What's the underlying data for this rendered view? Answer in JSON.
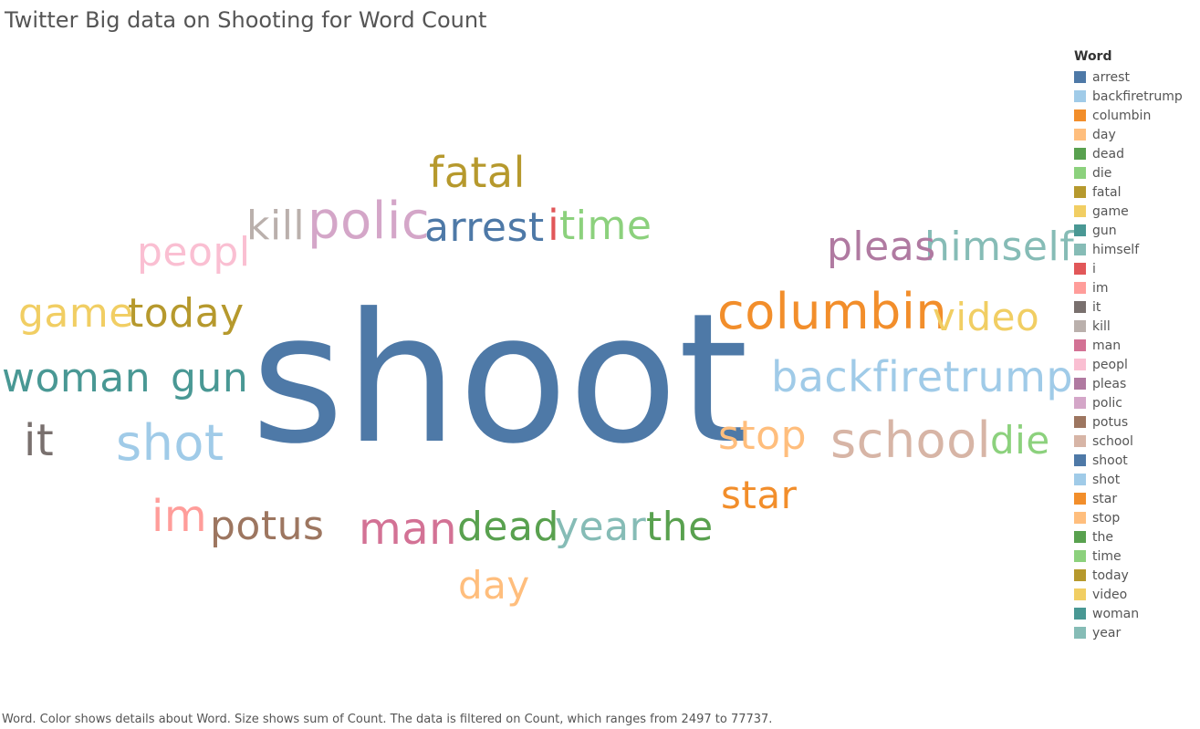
{
  "title": "Twitter Big data on Shooting for Word Count",
  "caption": "Word.  Color shows details about Word.  Size shows sum of Count. The data is filtered on Count, which ranges from 2497 to 77737.",
  "legend": {
    "title": "Word",
    "items": [
      {
        "label": "arrest",
        "color": "#4e79a7"
      },
      {
        "label": "backfiretrump",
        "color": "#a0cbe8"
      },
      {
        "label": "columbin",
        "color": "#f28e2b"
      },
      {
        "label": "day",
        "color": "#ffbe7d"
      },
      {
        "label": "dead",
        "color": "#59a14f"
      },
      {
        "label": "die",
        "color": "#8cd17d"
      },
      {
        "label": "fatal",
        "color": "#b6992d"
      },
      {
        "label": "game",
        "color": "#f1ce63"
      },
      {
        "label": "gun",
        "color": "#499894"
      },
      {
        "label": "himself",
        "color": "#86bcb6"
      },
      {
        "label": "i",
        "color": "#e15759"
      },
      {
        "label": "im",
        "color": "#ff9d9a"
      },
      {
        "label": "it",
        "color": "#79706e"
      },
      {
        "label": "kill",
        "color": "#bab0ac"
      },
      {
        "label": "man",
        "color": "#d37295"
      },
      {
        "label": "peopl",
        "color": "#fabfd2"
      },
      {
        "label": "pleas",
        "color": "#b07aa1"
      },
      {
        "label": "polic",
        "color": "#d4a6c8"
      },
      {
        "label": "potus",
        "color": "#9d7660"
      },
      {
        "label": "school",
        "color": "#d7b5a6"
      },
      {
        "label": "shoot",
        "color": "#4e79a7"
      },
      {
        "label": "shot",
        "color": "#a0cbe8"
      },
      {
        "label": "star",
        "color": "#f28e2b"
      },
      {
        "label": "stop",
        "color": "#ffbe7d"
      },
      {
        "label": "the",
        "color": "#59a14f"
      },
      {
        "label": "time",
        "color": "#8cd17d"
      },
      {
        "label": "today",
        "color": "#b6992d"
      },
      {
        "label": "video",
        "color": "#f1ce63"
      },
      {
        "label": "woman",
        "color": "#499894"
      },
      {
        "label": "year",
        "color": "#86bcb6"
      }
    ]
  },
  "chart_data": {
    "type": "wordcloud",
    "title": "Twitter Big data on Shooting for Word Count",
    "size_measure": "sum of Count",
    "count_range": [
      2497,
      77737
    ],
    "words": [
      {
        "word": "shoot",
        "count": 77737,
        "color": "#4e79a7"
      },
      {
        "word": "columbin",
        "count": 9000,
        "color": "#f28e2b"
      },
      {
        "word": "school",
        "count": 8500,
        "color": "#d7b5a6"
      },
      {
        "word": "polic",
        "count": 8000,
        "color": "#d4a6c8"
      },
      {
        "word": "shot",
        "count": 7800,
        "color": "#a0cbe8"
      },
      {
        "word": "backfiretrump",
        "count": 6500,
        "color": "#a0cbe8"
      },
      {
        "word": "man",
        "count": 6000,
        "color": "#d37295"
      },
      {
        "word": "himself",
        "count": 5500,
        "color": "#86bcb6"
      },
      {
        "word": "pleas",
        "count": 5500,
        "color": "#b07aa1"
      },
      {
        "word": "woman",
        "count": 5300,
        "color": "#499894"
      },
      {
        "word": "game",
        "count": 5300,
        "color": "#f1ce63"
      },
      {
        "word": "today",
        "count": 5300,
        "color": "#b6992d"
      },
      {
        "word": "stop",
        "count": 5300,
        "color": "#ffbe7d"
      },
      {
        "word": "it",
        "count": 5000,
        "color": "#79706e"
      },
      {
        "word": "im",
        "count": 5000,
        "color": "#ff9d9a"
      },
      {
        "word": "i",
        "count": 4800,
        "color": "#e15759"
      },
      {
        "word": "fatal",
        "count": 4700,
        "color": "#b6992d"
      },
      {
        "word": "time",
        "count": 4700,
        "color": "#8cd17d"
      },
      {
        "word": "potus",
        "count": 4600,
        "color": "#9d7660"
      },
      {
        "word": "dead",
        "count": 4600,
        "color": "#59a14f"
      },
      {
        "word": "year",
        "count": 4600,
        "color": "#86bcb6"
      },
      {
        "word": "the",
        "count": 4600,
        "color": "#59a14f"
      },
      {
        "word": "arrest",
        "count": 4600,
        "color": "#4e79a7"
      },
      {
        "word": "gun",
        "count": 4400,
        "color": "#499894"
      },
      {
        "word": "peopl",
        "count": 4400,
        "color": "#fabfd2"
      },
      {
        "word": "star",
        "count": 4200,
        "color": "#f28e2b"
      },
      {
        "word": "kill",
        "count": 4200,
        "color": "#bab0ac"
      },
      {
        "word": "video",
        "count": 4000,
        "color": "#f1ce63"
      },
      {
        "word": "die",
        "count": 4000,
        "color": "#8cd17d"
      },
      {
        "word": "day",
        "count": 4000,
        "color": "#ffbe7d"
      }
    ]
  }
}
